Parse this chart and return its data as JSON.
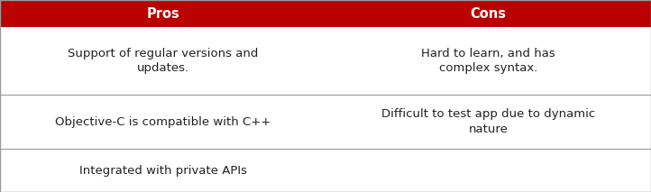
{
  "header": [
    "Pros",
    "Cons"
  ],
  "rows": [
    [
      "Support of regular versions and\nupdates.",
      "Hard to learn, and has\ncomplex syntax."
    ],
    [
      "Objective-C is compatible with C++",
      "Difficult to test app due to dynamic\nnature"
    ],
    [
      "Integrated with private APIs",
      ""
    ]
  ],
  "header_bg_color": "#bb0000",
  "header_text_color": "#ffffff",
  "cell_text_color": "#222222",
  "bg_color": "#ffffff",
  "border_color": "#999999",
  "header_fontsize": 10.5,
  "cell_fontsize": 9.5,
  "fig_width": 7.22,
  "fig_height": 2.13
}
